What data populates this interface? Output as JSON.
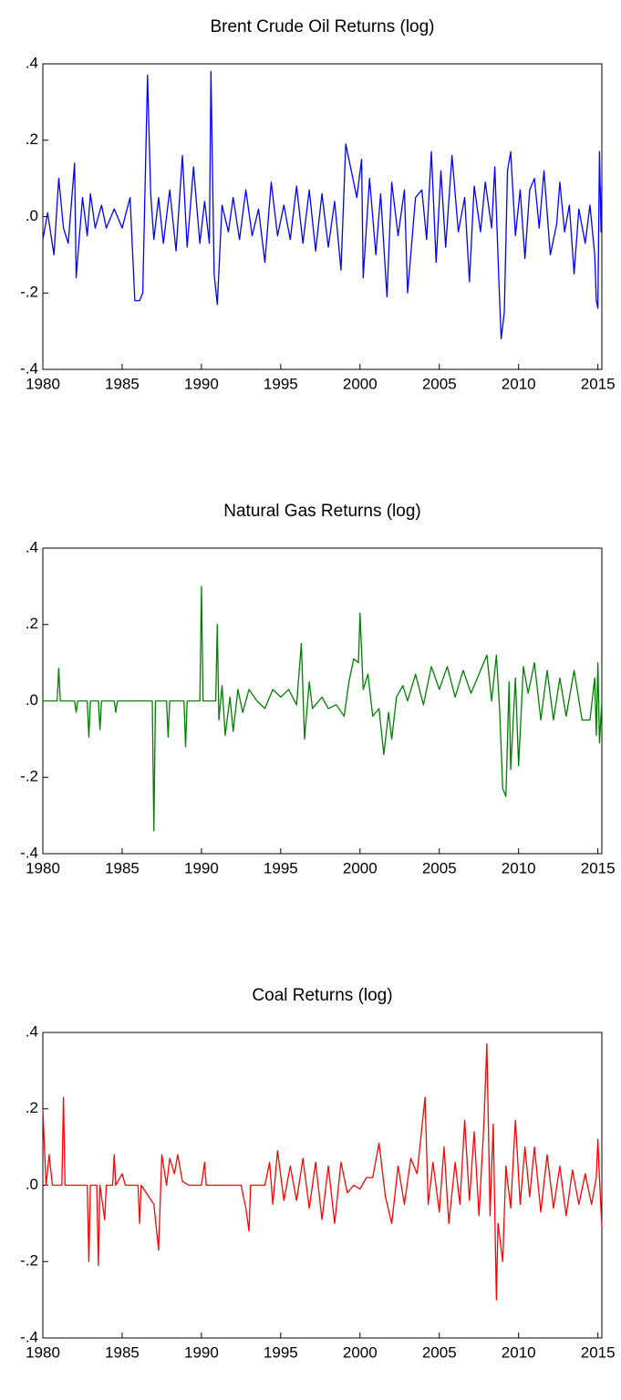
{
  "chart_data": [
    {
      "type": "line",
      "title": "Brent Crude Oil Returns (log)",
      "color": "#0000ff",
      "x": [
        1980,
        1980.3,
        1980.7,
        1981,
        1981.3,
        1981.6,
        1982,
        1982.1,
        1982.5,
        1982.8,
        1983,
        1983.3,
        1983.7,
        1984,
        1984.5,
        1985,
        1985.5,
        1985.8,
        1986.1,
        1986.3,
        1986.6,
        1986.8,
        1987,
        1987.3,
        1987.6,
        1988,
        1988.4,
        1988.8,
        1989.1,
        1989.5,
        1989.9,
        1990.2,
        1990.5,
        1990.6,
        1990.8,
        1991,
        1991.3,
        1991.7,
        1992,
        1992.4,
        1992.8,
        1993.2,
        1993.6,
        1994,
        1994.4,
        1994.8,
        1995.2,
        1995.6,
        1996,
        1996.4,
        1996.8,
        1997.2,
        1997.6,
        1998,
        1998.4,
        1998.8,
        1999.1,
        1999.4,
        1999.8,
        2000.1,
        2000.2,
        2000.6,
        2001,
        2001.3,
        2001.7,
        2002,
        2002.4,
        2002.8,
        2003,
        2003.5,
        2003.9,
        2004.2,
        2004.5,
        2004.8,
        2005.1,
        2005.4,
        2005.8,
        2006.2,
        2006.6,
        2006.9,
        2007.2,
        2007.6,
        2007.9,
        2008.3,
        2008.5,
        2008.75,
        2008.9,
        2009.1,
        2009.3,
        2009.5,
        2009.8,
        2010.1,
        2010.4,
        2010.7,
        2011,
        2011.3,
        2011.6,
        2012,
        2012.4,
        2012.6,
        2012.9,
        2013.2,
        2013.5,
        2013.8,
        2014.2,
        2014.5,
        2014.8,
        2014.9,
        2015,
        2015.1,
        2015.2,
        2015.25
      ],
      "values": [
        -0.06,
        0.01,
        -0.1,
        0.1,
        -0.03,
        -0.07,
        0.14,
        -0.16,
        0.05,
        -0.05,
        0.06,
        -0.03,
        0.03,
        -0.03,
        0.02,
        -0.03,
        0.05,
        -0.22,
        -0.22,
        -0.2,
        0.37,
        0.06,
        -0.06,
        0.05,
        -0.07,
        0.07,
        -0.09,
        0.16,
        -0.08,
        0.13,
        -0.07,
        0.04,
        -0.07,
        0.38,
        -0.15,
        -0.23,
        0.03,
        -0.04,
        0.05,
        -0.06,
        0.07,
        -0.05,
        0.02,
        -0.12,
        0.09,
        -0.05,
        0.03,
        -0.06,
        0.08,
        -0.07,
        0.07,
        -0.09,
        0.06,
        -0.08,
        0.04,
        -0.14,
        0.19,
        0.13,
        0.05,
        0.15,
        -0.16,
        0.1,
        -0.1,
        0.06,
        -0.21,
        0.09,
        -0.05,
        0.07,
        -0.2,
        0.05,
        0.07,
        -0.06,
        0.17,
        -0.12,
        0.12,
        -0.08,
        0.16,
        -0.04,
        0.05,
        -0.17,
        0.08,
        -0.04,
        0.09,
        -0.03,
        0.13,
        -0.16,
        -0.32,
        -0.25,
        0.12,
        0.17,
        -0.05,
        0.07,
        -0.11,
        0.07,
        0.1,
        -0.03,
        0.12,
        -0.1,
        -0.02,
        0.09,
        -0.04,
        0.03,
        -0.15,
        0.02,
        -0.07,
        0.03,
        -0.1,
        -0.22,
        -0.24,
        0.17,
        -0.04,
        0.08
      ],
      "xlim": [
        1980,
        2015.25
      ],
      "xticks": [
        1980,
        1985,
        1990,
        1995,
        2000,
        2005,
        2010,
        2015
      ],
      "ylim": [
        -0.4,
        0.4
      ],
      "yticks": [
        {
          "value": 0.4,
          "label": ".4"
        },
        {
          "value": 0.2,
          "label": ".2"
        },
        {
          "value": 0,
          "label": ".0"
        },
        {
          "value": -0.2,
          "label": "-.2"
        },
        {
          "value": -0.4,
          "label": "-.4"
        }
      ]
    },
    {
      "type": "line",
      "title": "Natural Gas Returns (log)",
      "color": "#008000",
      "x": [
        1980,
        1980.9,
        1981,
        1981.1,
        1982,
        1982.1,
        1982.2,
        1982.8,
        1982.9,
        1983,
        1983.5,
        1983.6,
        1983.7,
        1984.5,
        1984.6,
        1984.7,
        1986.9,
        1987,
        1987.1,
        1987.8,
        1987.9,
        1988,
        1988.9,
        1989,
        1989.1,
        1989.9,
        1990,
        1990.1,
        1990.9,
        1991,
        1991.1,
        1991.3,
        1991.5,
        1991.8,
        1992,
        1992.3,
        1992.6,
        1993,
        1993.5,
        1994,
        1994.5,
        1995,
        1995.5,
        1996,
        1996.3,
        1996.5,
        1996.8,
        1997,
        1997.6,
        1998,
        1998.5,
        1999,
        1999.3,
        1999.6,
        1999.9,
        2000,
        2000.2,
        2000.5,
        2000.8,
        2001.2,
        2001.5,
        2001.8,
        2002,
        2002.3,
        2002.7,
        2003,
        2003.5,
        2004,
        2004.5,
        2005,
        2005.5,
        2006,
        2006.5,
        2007,
        2007.5,
        2008,
        2008.3,
        2008.6,
        2008.8,
        2009,
        2009.2,
        2009.4,
        2009.5,
        2009.8,
        2010,
        2010.3,
        2010.6,
        2011,
        2011.4,
        2011.8,
        2012.2,
        2012.6,
        2013,
        2013.5,
        2014,
        2014.5,
        2014.8,
        2014.9,
        2015,
        2015.1,
        2015.25
      ],
      "values": [
        0,
        0,
        0.085,
        0,
        0,
        -0.03,
        0,
        0,
        -0.095,
        0,
        0,
        -0.075,
        0,
        0,
        -0.03,
        0,
        0,
        -0.34,
        0,
        0,
        -0.095,
        0,
        0,
        -0.12,
        0,
        0,
        0.3,
        0,
        0,
        0.2,
        -0.05,
        0.04,
        -0.09,
        0.01,
        -0.08,
        0.03,
        -0.03,
        0.03,
        0,
        -0.02,
        0.03,
        0.01,
        0.03,
        -0.01,
        0.15,
        -0.1,
        0.05,
        -0.02,
        0.01,
        -0.02,
        -0.01,
        -0.04,
        0.05,
        0.11,
        0.1,
        0.23,
        0.03,
        0.07,
        -0.04,
        -0.02,
        -0.14,
        -0.03,
        -0.1,
        0.01,
        0.04,
        0,
        0.07,
        -0.01,
        0.09,
        0.03,
        0.09,
        0.01,
        0.08,
        0.02,
        0.07,
        0.12,
        0,
        0.12,
        -0.02,
        -0.23,
        -0.25,
        0.05,
        -0.18,
        0.06,
        -0.17,
        0.09,
        0.02,
        0.1,
        -0.05,
        0.08,
        -0.05,
        0.06,
        -0.04,
        0.08,
        -0.05,
        -0.05,
        0.06,
        -0.09,
        0.1,
        -0.11,
        0
      ],
      "xlim": [
        1980,
        2015.25
      ],
      "xticks": [
        1980,
        1985,
        1990,
        1995,
        2000,
        2005,
        2010,
        2015
      ],
      "ylim": [
        -0.4,
        0.4
      ],
      "yticks": [
        {
          "value": 0.4,
          "label": ".4"
        },
        {
          "value": 0.2,
          "label": ".2"
        },
        {
          "value": 0,
          "label": ".0"
        },
        {
          "value": -0.2,
          "label": "-.2"
        },
        {
          "value": -0.4,
          "label": "-.4"
        }
      ]
    },
    {
      "type": "line",
      "title": "Coal Returns (log)",
      "color": "#ff0000",
      "x": [
        1980,
        1980.2,
        1980.4,
        1980.6,
        1981.2,
        1981.3,
        1981.4,
        1982.8,
        1982.9,
        1983,
        1983.4,
        1983.5,
        1983.6,
        1983.9,
        1984,
        1984.4,
        1984.5,
        1984.6,
        1985,
        1985.2,
        1986,
        1986.1,
        1986.2,
        1987,
        1987.3,
        1987.5,
        1987.8,
        1988,
        1988.3,
        1988.5,
        1988.8,
        1989.2,
        1990,
        1990.2,
        1990.3,
        1992.5,
        1992.8,
        1993,
        1993.1,
        1994,
        1994.3,
        1994.5,
        1994.8,
        1995.2,
        1995.6,
        1996,
        1996.4,
        1996.8,
        1997.2,
        1997.6,
        1998,
        1998.4,
        1998.8,
        1999.2,
        1999.6,
        2000,
        2000.4,
        2000.8,
        2001.2,
        2001.6,
        2002,
        2002.4,
        2002.8,
        2003.2,
        2003.6,
        2003.9,
        2004.1,
        2004.3,
        2004.6,
        2005,
        2005.3,
        2005.6,
        2006,
        2006.3,
        2006.6,
        2006.9,
        2007.2,
        2007.5,
        2007.8,
        2008,
        2008.2,
        2008.4,
        2008.6,
        2008.7,
        2009,
        2009.2,
        2009.5,
        2009.8,
        2010.1,
        2010.4,
        2010.7,
        2011,
        2011.4,
        2011.8,
        2012.2,
        2012.6,
        2013,
        2013.4,
        2013.8,
        2014.2,
        2014.6,
        2014.9,
        2015,
        2015.1,
        2015.25
      ],
      "values": [
        0.2,
        0,
        0.08,
        0,
        0,
        0.23,
        0,
        0,
        -0.2,
        0,
        0,
        -0.21,
        0,
        -0.09,
        0,
        0,
        0.08,
        0,
        0.03,
        0,
        0,
        -0.1,
        0,
        -0.05,
        -0.17,
        0.08,
        0,
        0.07,
        0.03,
        0.08,
        0.01,
        0,
        0,
        0.06,
        0,
        0,
        -0.06,
        -0.12,
        0,
        0,
        0.06,
        -0.05,
        0.09,
        -0.04,
        0.05,
        -0.04,
        0.07,
        -0.06,
        0.06,
        -0.09,
        0.05,
        -0.1,
        0.06,
        -0.02,
        0,
        -0.01,
        0.02,
        0.02,
        0.11,
        -0.03,
        -0.1,
        0.05,
        -0.05,
        0.07,
        0.03,
        0.15,
        0.23,
        -0.05,
        0.06,
        -0.07,
        0.1,
        -0.1,
        0.06,
        -0.05,
        0.17,
        -0.04,
        0.14,
        -0.08,
        0.15,
        0.37,
        -0.08,
        0.16,
        -0.3,
        -0.1,
        -0.2,
        0.05,
        -0.06,
        0.17,
        -0.05,
        0.1,
        -0.03,
        0.1,
        -0.07,
        0.08,
        -0.06,
        0.05,
        -0.08,
        0.04,
        -0.05,
        0.03,
        -0.05,
        0.02,
        0.12,
        0.02,
        -0.11
      ],
      "xlim": [
        1980,
        2015.25
      ],
      "xticks": [
        1980,
        1985,
        1990,
        1995,
        2000,
        2005,
        2010,
        2015
      ],
      "ylim": [
        -0.4,
        0.4
      ],
      "yticks": [
        {
          "value": 0.4,
          "label": ".4"
        },
        {
          "value": 0.2,
          "label": ".2"
        },
        {
          "value": 0,
          "label": ".0"
        },
        {
          "value": -0.2,
          "label": "-.2"
        },
        {
          "value": -0.4,
          "label": "-.4"
        }
      ]
    }
  ]
}
